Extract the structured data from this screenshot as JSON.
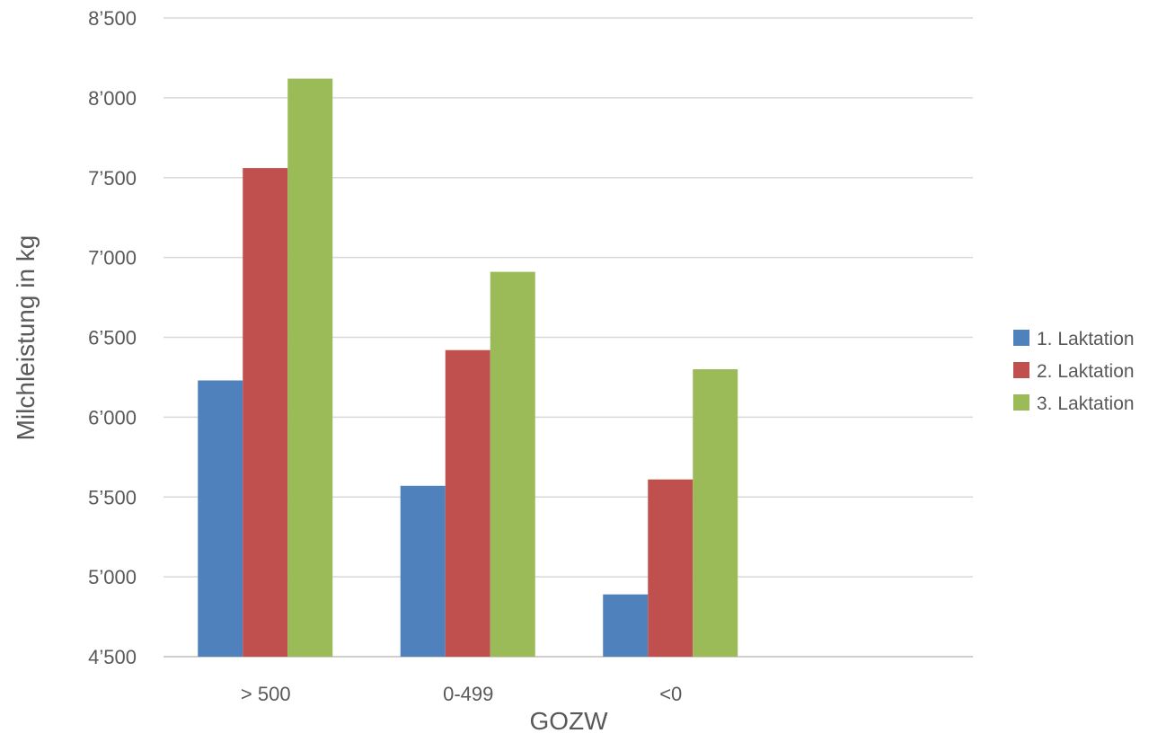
{
  "chart_data": {
    "type": "bar",
    "title": "",
    "xlabel": "GOZW",
    "ylabel": "Milchleistung in kg",
    "categories": [
      "> 500",
      "0-499",
      "<0"
    ],
    "series": [
      {
        "name": "1. Laktation",
        "color": "#4f81bd",
        "values": [
          6230,
          5570,
          4890
        ]
      },
      {
        "name": "2. Laktation",
        "color": "#c0504d",
        "values": [
          7560,
          6420,
          5610
        ]
      },
      {
        "name": "3. Laktation",
        "color": "#9bbb59",
        "values": [
          8120,
          6910,
          6300
        ]
      }
    ],
    "ylim": [
      4500,
      8500
    ],
    "yticks": [
      4500,
      5000,
      5500,
      6000,
      6500,
      7000,
      7500,
      8000,
      8500
    ],
    "ytick_labels": [
      "4’500",
      "5’000",
      "5’500",
      "6’000",
      "6’500",
      "7’000",
      "7’500",
      "8’000",
      "8’500"
    ],
    "grid": true,
    "legend_position": "right",
    "gridline_color": "#d9d9d9",
    "axis_color": "#bfbfbf"
  }
}
